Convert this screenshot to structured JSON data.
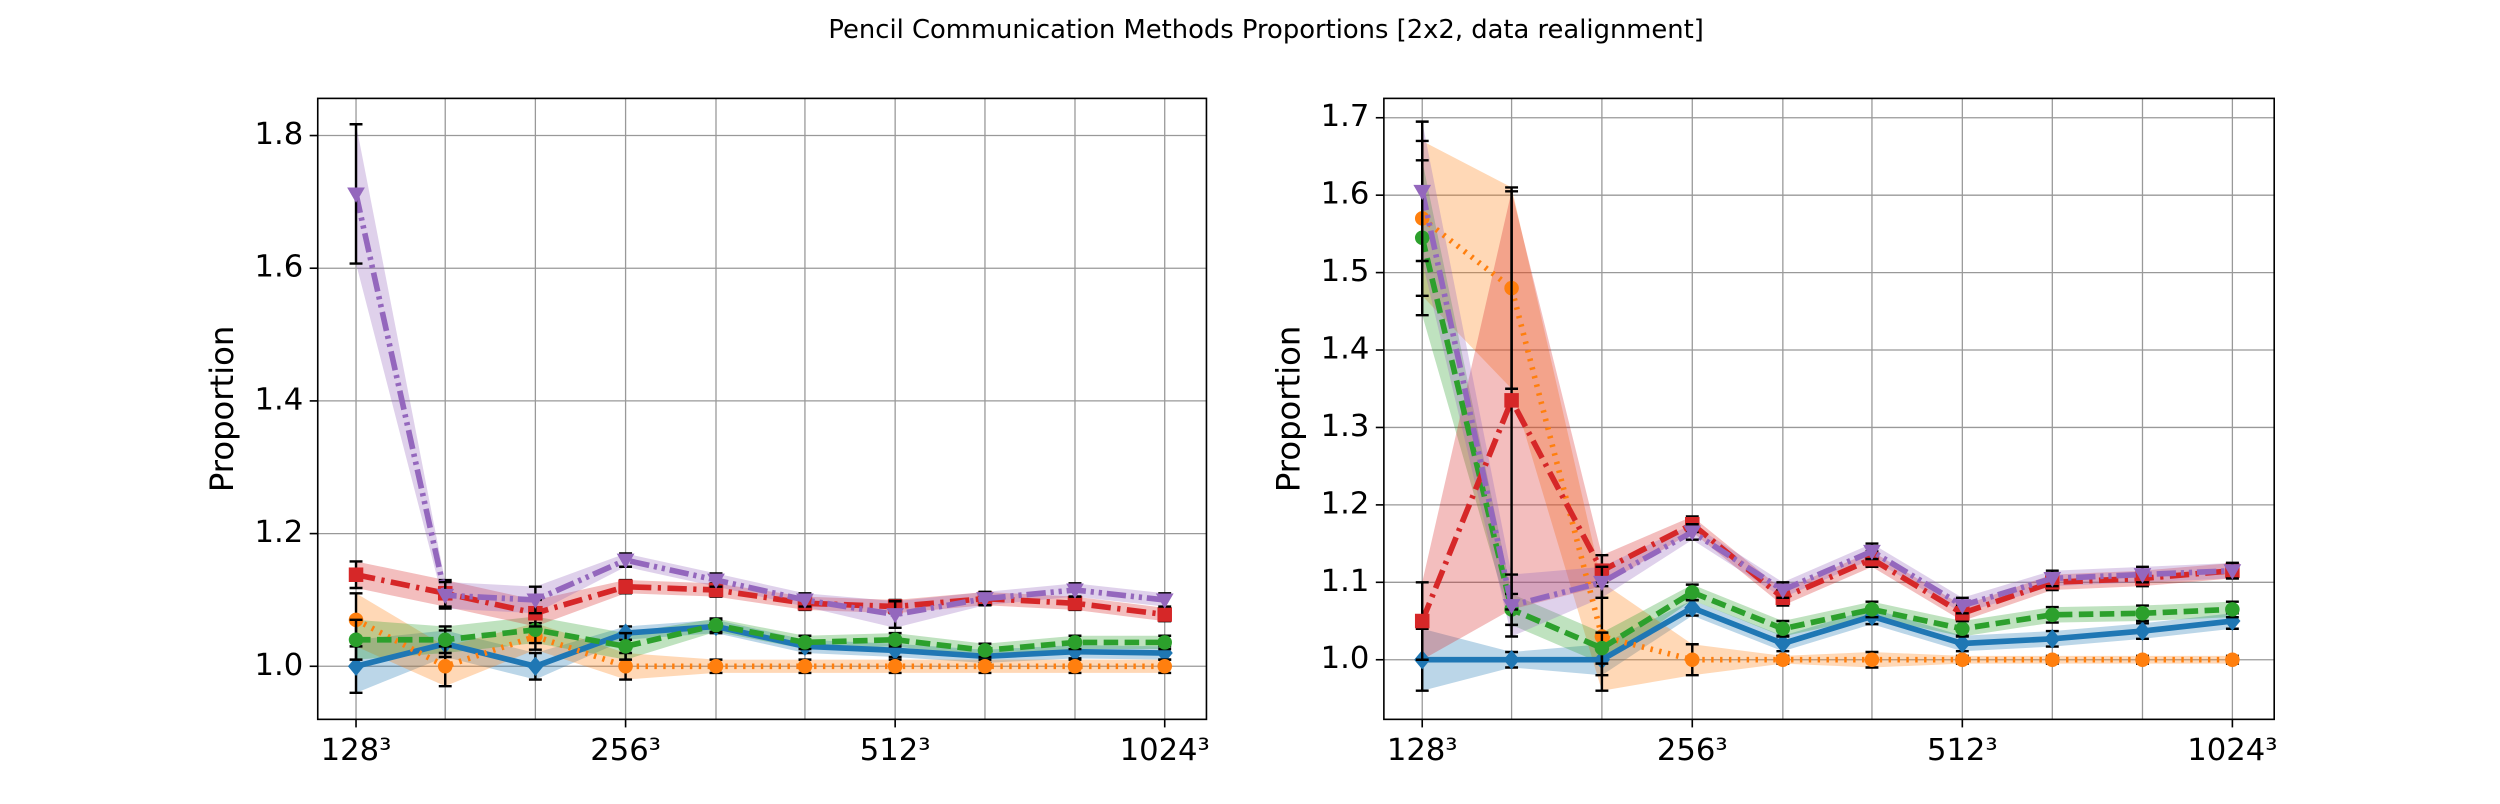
{
  "title": "Pencil Communication Methods Proportions [2x2, data realignment]",
  "chart_data": [
    {
      "type": "line",
      "ylabel": "Proportion",
      "xscale": "log",
      "grid": true,
      "x": [
        128,
        161,
        203,
        256,
        323,
        406,
        512,
        645,
        813,
        1024
      ],
      "xlim": [
        116,
        1140
      ],
      "xticks": [
        {
          "value": 128,
          "label": "128³"
        },
        {
          "value": 256,
          "label": "256³"
        },
        {
          "value": 512,
          "label": "512³"
        },
        {
          "value": 1024,
          "label": "1024³"
        }
      ],
      "ylim": [
        0.92,
        1.856
      ],
      "yticks": [
        {
          "value": 1.0,
          "label": "1.0"
        },
        {
          "value": 1.2,
          "label": "1.2"
        },
        {
          "value": 1.4,
          "label": "1.4"
        },
        {
          "value": 1.6,
          "label": "1.6"
        },
        {
          "value": 1.8,
          "label": "1.8"
        }
      ],
      "series": [
        {
          "color": "#1f77b4",
          "linestyle": "solid",
          "marker": "diamond",
          "values": [
            1.0,
            1.034,
            1.0,
            1.05,
            1.06,
            1.03,
            1.024,
            1.015,
            1.022,
            1.02
          ],
          "errors": [
            0.04,
            0.02,
            0.02,
            0.01,
            0.01,
            0.01,
            0.01,
            0.01,
            0.01,
            0.01
          ]
        },
        {
          "color": "#ff7f0e",
          "linestyle": "dotted",
          "marker": "circle",
          "values": [
            1.07,
            1.0,
            1.045,
            1.0,
            1.0,
            1.0,
            1.0,
            1.0,
            1.0,
            1.0
          ],
          "errors": [
            0.04,
            0.03,
            0.02,
            0.02,
            0.01,
            0.01,
            0.01,
            0.01,
            0.01,
            0.01
          ]
        },
        {
          "color": "#2ca02c",
          "linestyle": "dashed",
          "marker": "circle",
          "values": [
            1.04,
            1.04,
            1.055,
            1.03,
            1.062,
            1.036,
            1.04,
            1.024,
            1.036,
            1.036
          ],
          "errors": [
            0.03,
            0.02,
            0.02,
            0.02,
            0.01,
            0.01,
            0.01,
            0.01,
            0.01,
            0.01
          ]
        },
        {
          "color": "#d62728",
          "linestyle": "dashdot",
          "marker": "square",
          "values": [
            1.138,
            1.11,
            1.08,
            1.12,
            1.115,
            1.095,
            1.09,
            1.102,
            1.095,
            1.078
          ],
          "errors": [
            0.02,
            0.02,
            0.02,
            0.01,
            0.01,
            0.01,
            0.01,
            0.01,
            0.01,
            0.01
          ]
        },
        {
          "color": "#9467bd",
          "linestyle": "dashdotdot",
          "marker": "triangle-down",
          "values": [
            1.712,
            1.107,
            1.1,
            1.16,
            1.13,
            1.1,
            1.078,
            1.102,
            1.115,
            1.1
          ],
          "errors": [
            0.105,
            0.02,
            0.02,
            0.01,
            0.01,
            0.01,
            0.02,
            0.01,
            0.01,
            0.01
          ]
        }
      ]
    },
    {
      "type": "line",
      "ylabel": "Proportion",
      "xscale": "log",
      "grid": true,
      "x": [
        128,
        161,
        203,
        256,
        323,
        406,
        512,
        645,
        813,
        1024
      ],
      "xlim": [
        116,
        1140
      ],
      "xticks": [
        {
          "value": 128,
          "label": "128³"
        },
        {
          "value": 256,
          "label": "256³"
        },
        {
          "value": 512,
          "label": "512³"
        },
        {
          "value": 1024,
          "label": "1024³"
        }
      ],
      "ylim": [
        0.923,
        1.725
      ],
      "yticks": [
        {
          "value": 1.0,
          "label": "1.0"
        },
        1.1,
        1.2,
        1.3,
        1.4,
        1.5,
        1.6,
        1.7
      ],
      "series": [
        {
          "color": "#1f77b4",
          "linestyle": "solid",
          "marker": "diamond",
          "values": [
            1.0,
            1.0,
            1.0,
            1.067,
            1.021,
            1.056,
            1.021,
            1.027,
            1.037,
            1.05
          ],
          "errors": [
            0.04,
            0.01,
            0.02,
            0.01,
            0.01,
            0.01,
            0.01,
            0.01,
            0.01,
            0.01
          ]
        },
        {
          "color": "#ff7f0e",
          "linestyle": "dotted",
          "marker": "circle",
          "values": [
            1.57,
            1.48,
            1.03,
            1.0,
            1.0,
            1.0,
            1.0,
            1.0,
            1.0,
            1.0
          ],
          "errors": [
            0.1,
            0.13,
            0.07,
            0.02,
            0.005,
            0.01,
            0.005,
            0.005,
            0.005,
            0.005
          ]
        },
        {
          "color": "#2ca02c",
          "linestyle": "dashed",
          "marker": "circle",
          "values": [
            1.545,
            1.065,
            1.015,
            1.087,
            1.04,
            1.065,
            1.04,
            1.058,
            1.06,
            1.065
          ],
          "errors": [
            0.1,
            0.02,
            0.02,
            0.01,
            0.01,
            0.01,
            0.01,
            0.01,
            0.01,
            0.01
          ]
        },
        {
          "color": "#d62728",
          "linestyle": "dashdot",
          "marker": "square",
          "values": [
            1.05,
            1.335,
            1.115,
            1.175,
            1.08,
            1.13,
            1.06,
            1.1,
            1.105,
            1.115
          ],
          "errors": [
            0.05,
            0.27,
            0.02,
            0.01,
            0.01,
            0.01,
            0.01,
            0.01,
            0.01,
            0.01
          ]
        },
        {
          "color": "#9467bd",
          "linestyle": "dashdotdot",
          "marker": "triangle-down",
          "values": [
            1.605,
            1.07,
            1.1,
            1.165,
            1.09,
            1.14,
            1.07,
            1.105,
            1.11,
            1.115
          ],
          "errors": [
            0.09,
            0.04,
            0.02,
            0.01,
            0.01,
            0.01,
            0.01,
            0.01,
            0.01,
            0.01
          ]
        }
      ]
    }
  ]
}
